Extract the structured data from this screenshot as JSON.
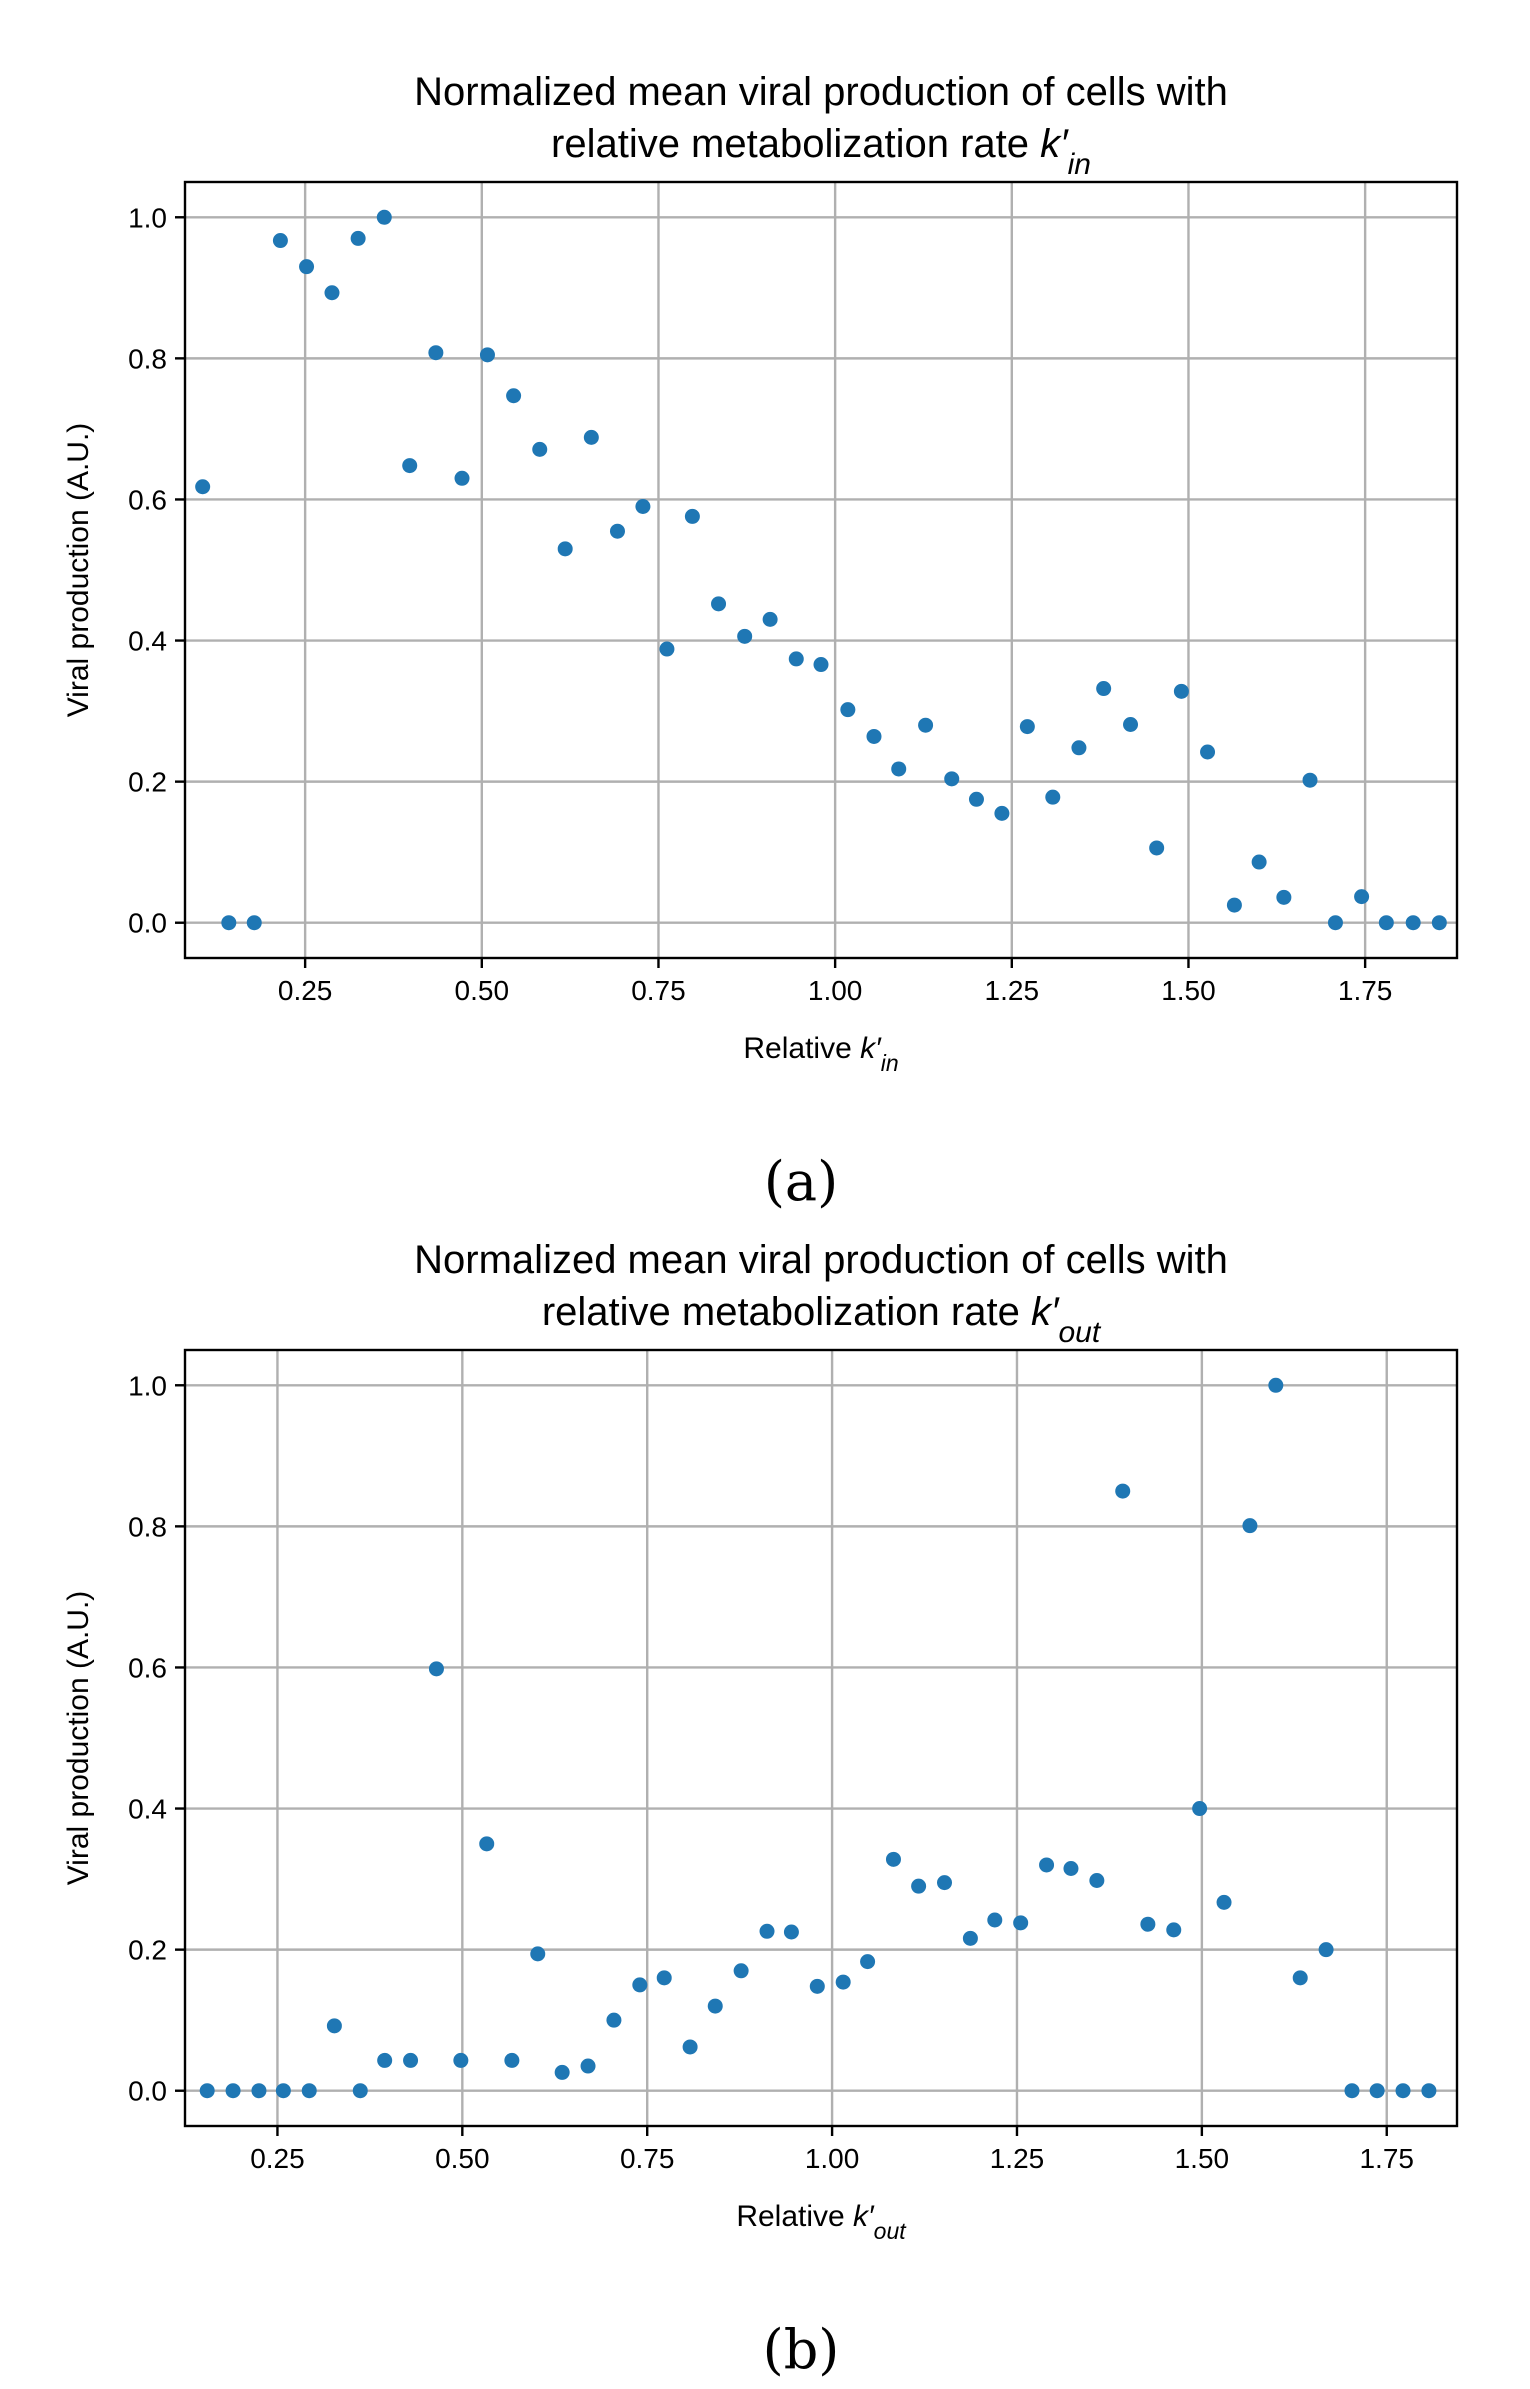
{
  "chart_data": [
    {
      "type": "scatter",
      "panel_label": "(a)",
      "title_line1": "Normalized mean viral production of cells with",
      "title_line2_prefix": "relative metabolization rate ",
      "title_symbol": "k′",
      "title_subscript": "in",
      "xlabel_prefix": "Relative ",
      "xlabel_symbol": "k′",
      "xlabel_subscript": "in",
      "ylabel": "Viral production (A.U.)",
      "xlim": [
        0.08,
        1.88
      ],
      "ylim": [
        -0.05,
        1.05
      ],
      "xticks": [
        0.25,
        0.5,
        0.75,
        1.0,
        1.25,
        1.5,
        1.75
      ],
      "xtick_labels": [
        "0.25",
        "0.50",
        "0.75",
        "1.00",
        "1.25",
        "1.50",
        "1.75"
      ],
      "yticks": [
        0.0,
        0.2,
        0.4,
        0.6,
        0.8,
        1.0
      ],
      "ytick_labels": [
        "0.0",
        "0.2",
        "0.4",
        "0.6",
        "0.8",
        "1.0"
      ],
      "grid": true,
      "color": "#1f77b4",
      "points": [
        [
          0.105,
          0.618
        ],
        [
          0.142,
          0.0
        ],
        [
          0.178,
          0.0
        ],
        [
          0.215,
          0.967
        ],
        [
          0.252,
          0.93
        ],
        [
          0.288,
          0.893
        ],
        [
          0.325,
          0.97
        ],
        [
          0.362,
          1.0
        ],
        [
          0.398,
          0.648
        ],
        [
          0.435,
          0.808
        ],
        [
          0.472,
          0.63
        ],
        [
          0.508,
          0.805
        ],
        [
          0.545,
          0.747
        ],
        [
          0.582,
          0.671
        ],
        [
          0.618,
          0.53
        ],
        [
          0.655,
          0.688
        ],
        [
          0.692,
          0.555
        ],
        [
          0.728,
          0.59
        ],
        [
          0.762,
          0.388
        ],
        [
          0.798,
          0.576
        ],
        [
          0.835,
          0.452
        ],
        [
          0.872,
          0.406
        ],
        [
          0.908,
          0.43
        ],
        [
          0.945,
          0.374
        ],
        [
          0.98,
          0.366
        ],
        [
          1.018,
          0.302
        ],
        [
          1.055,
          0.264
        ],
        [
          1.09,
          0.218
        ],
        [
          1.128,
          0.28
        ],
        [
          1.165,
          0.204
        ],
        [
          1.2,
          0.175
        ],
        [
          1.236,
          0.155
        ],
        [
          1.272,
          0.278
        ],
        [
          1.308,
          0.178
        ],
        [
          1.345,
          0.248
        ],
        [
          1.38,
          0.332
        ],
        [
          1.418,
          0.281
        ],
        [
          1.455,
          0.106
        ],
        [
          1.49,
          0.328
        ],
        [
          1.527,
          0.242
        ],
        [
          1.565,
          0.025
        ],
        [
          1.6,
          0.086
        ],
        [
          1.635,
          0.036
        ],
        [
          1.672,
          0.202
        ],
        [
          1.708,
          0.0
        ],
        [
          1.745,
          0.037
        ],
        [
          1.78,
          0.0
        ],
        [
          1.818,
          0.0
        ],
        [
          1.855,
          0.0
        ]
      ]
    },
    {
      "type": "scatter",
      "panel_label": "(b)",
      "title_line1": "Normalized mean viral production of cells with",
      "title_line2_prefix": "relative metabolization rate ",
      "title_symbol": "k′",
      "title_subscript": "out",
      "xlabel_prefix": "Relative ",
      "xlabel_symbol": "k′",
      "xlabel_subscript": "out",
      "ylabel": "Viral production (A.U.)",
      "xlim": [
        0.125,
        1.845
      ],
      "ylim": [
        -0.05,
        1.05
      ],
      "xticks": [
        0.25,
        0.5,
        0.75,
        1.0,
        1.25,
        1.5,
        1.75
      ],
      "xtick_labels": [
        "0.25",
        "0.50",
        "0.75",
        "1.00",
        "1.25",
        "1.50",
        "1.75"
      ],
      "yticks": [
        0.0,
        0.2,
        0.4,
        0.6,
        0.8,
        1.0
      ],
      "ytick_labels": [
        "0.0",
        "0.2",
        "0.4",
        "0.6",
        "0.8",
        "1.0"
      ],
      "grid": true,
      "color": "#1f77b4",
      "points": [
        [
          0.155,
          0.0
        ],
        [
          0.19,
          0.0
        ],
        [
          0.225,
          0.0
        ],
        [
          0.258,
          0.0
        ],
        [
          0.293,
          0.0
        ],
        [
          0.327,
          0.092
        ],
        [
          0.362,
          0.0
        ],
        [
          0.395,
          0.043
        ],
        [
          0.43,
          0.043
        ],
        [
          0.465,
          0.598
        ],
        [
          0.498,
          0.043
        ],
        [
          0.533,
          0.35
        ],
        [
          0.567,
          0.043
        ],
        [
          0.602,
          0.194
        ],
        [
          0.635,
          0.026
        ],
        [
          0.67,
          0.035
        ],
        [
          0.705,
          0.1
        ],
        [
          0.74,
          0.15
        ],
        [
          0.773,
          0.16
        ],
        [
          0.808,
          0.062
        ],
        [
          0.842,
          0.12
        ],
        [
          0.877,
          0.17
        ],
        [
          0.912,
          0.226
        ],
        [
          0.945,
          0.225
        ],
        [
          0.98,
          0.148
        ],
        [
          1.015,
          0.154
        ],
        [
          1.048,
          0.183
        ],
        [
          1.083,
          0.328
        ],
        [
          1.117,
          0.29
        ],
        [
          1.152,
          0.295
        ],
        [
          1.187,
          0.216
        ],
        [
          1.22,
          0.242
        ],
        [
          1.255,
          0.238
        ],
        [
          1.29,
          0.32
        ],
        [
          1.323,
          0.315
        ],
        [
          1.358,
          0.298
        ],
        [
          1.393,
          0.85
        ],
        [
          1.427,
          0.236
        ],
        [
          1.462,
          0.228
        ],
        [
          1.497,
          0.4
        ],
        [
          1.53,
          0.267
        ],
        [
          1.565,
          0.801
        ],
        [
          1.6,
          1.0
        ],
        [
          1.633,
          0.16
        ],
        [
          1.668,
          0.2
        ],
        [
          1.703,
          0.0
        ],
        [
          1.737,
          0.0
        ],
        [
          1.772,
          0.0
        ],
        [
          1.807,
          0.0
        ]
      ]
    }
  ]
}
